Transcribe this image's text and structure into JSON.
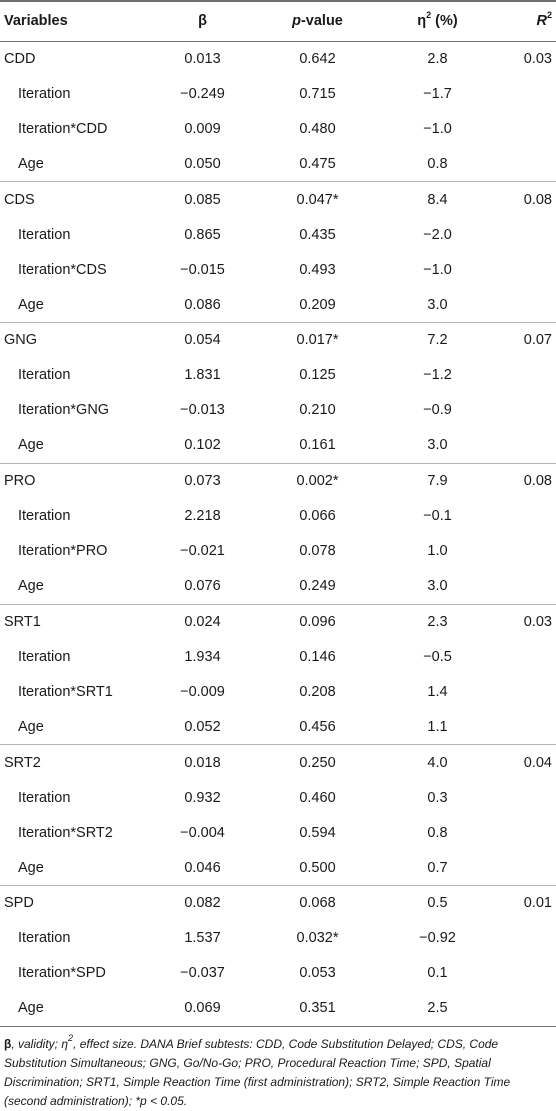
{
  "header": {
    "variables": "Variables",
    "beta": "β",
    "p_label": "p",
    "p_suffix": "-value",
    "eta": "η",
    "eta_sup": "2",
    "eta_suffix": " (%)",
    "r": "R",
    "r_sup": "2"
  },
  "rows": [
    {
      "var": "CDD",
      "beta": "0.013",
      "p": "0.642",
      "eta": "2.8",
      "r2": "0.03",
      "sub": false
    },
    {
      "var": "Iteration",
      "beta": "−0.249",
      "p": "0.715",
      "eta": "−1.7",
      "r2": "",
      "sub": true
    },
    {
      "var": "Iteration*CDD",
      "beta": "0.009",
      "p": "0.480",
      "eta": "−1.0",
      "r2": "",
      "sub": true
    },
    {
      "var": "Age",
      "beta": "0.050",
      "p": "0.475",
      "eta": "0.8",
      "r2": "",
      "sub": true
    },
    {
      "var": "CDS",
      "beta": "0.085",
      "p": "0.047*",
      "eta": "8.4",
      "r2": "0.08",
      "sub": false
    },
    {
      "var": "Iteration",
      "beta": "0.865",
      "p": "0.435",
      "eta": "−2.0",
      "r2": "",
      "sub": true
    },
    {
      "var": "Iteration*CDS",
      "beta": "−0.015",
      "p": "0.493",
      "eta": "−1.0",
      "r2": "",
      "sub": true
    },
    {
      "var": "Age",
      "beta": "0.086",
      "p": "0.209",
      "eta": "3.0",
      "r2": "",
      "sub": true
    },
    {
      "var": "GNG",
      "beta": "0.054",
      "p": "0.017*",
      "eta": "7.2",
      "r2": "0.07",
      "sub": false
    },
    {
      "var": "Iteration",
      "beta": "1.831",
      "p": "0.125",
      "eta": "−1.2",
      "r2": "",
      "sub": true
    },
    {
      "var": "Iteration*GNG",
      "beta": "−0.013",
      "p": "0.210",
      "eta": "−0.9",
      "r2": "",
      "sub": true
    },
    {
      "var": "Age",
      "beta": "0.102",
      "p": "0.161",
      "eta": "3.0",
      "r2": "",
      "sub": true
    },
    {
      "var": "PRO",
      "beta": "0.073",
      "p": "0.002*",
      "eta": "7.9",
      "r2": "0.08",
      "sub": false
    },
    {
      "var": "Iteration",
      "beta": "2.218",
      "p": "0.066",
      "eta": "−0.1",
      "r2": "",
      "sub": true
    },
    {
      "var": "Iteration*PRO",
      "beta": "−0.021",
      "p": "0.078",
      "eta": "1.0",
      "r2": "",
      "sub": true
    },
    {
      "var": "Age",
      "beta": "0.076",
      "p": "0.249",
      "eta": "3.0",
      "r2": "",
      "sub": true
    },
    {
      "var": "SRT1",
      "beta": "0.024",
      "p": "0.096",
      "eta": "2.3",
      "r2": "0.03",
      "sub": false
    },
    {
      "var": "Iteration",
      "beta": "1.934",
      "p": "0.146",
      "eta": "−0.5",
      "r2": "",
      "sub": true
    },
    {
      "var": "Iteration*SRT1",
      "beta": "−0.009",
      "p": "0.208",
      "eta": "1.4",
      "r2": "",
      "sub": true
    },
    {
      "var": "Age",
      "beta": "0.052",
      "p": "0.456",
      "eta": "1.1",
      "r2": "",
      "sub": true
    },
    {
      "var": "SRT2",
      "beta": "0.018",
      "p": "0.250",
      "eta": "4.0",
      "r2": "0.04",
      "sub": false
    },
    {
      "var": "Iteration",
      "beta": "0.932",
      "p": "0.460",
      "eta": "0.3",
      "r2": "",
      "sub": true
    },
    {
      "var": "Iteration*SRT2",
      "beta": "−0.004",
      "p": "0.594",
      "eta": "0.8",
      "r2": "",
      "sub": true
    },
    {
      "var": "Age",
      "beta": "0.046",
      "p": "0.500",
      "eta": "0.7",
      "r2": "",
      "sub": true
    },
    {
      "var": "SPD",
      "beta": "0.082",
      "p": "0.068",
      "eta": "0.5",
      "r2": "0.01",
      "sub": false
    },
    {
      "var": "Iteration",
      "beta": "1.537",
      "p": "0.032*",
      "eta": "−0.92",
      "r2": "",
      "sub": true
    },
    {
      "var": "Iteration*SPD",
      "beta": "−0.037",
      "p": "0.053",
      "eta": "0.1",
      "r2": "",
      "sub": true
    },
    {
      "var": "Age",
      "beta": "0.069",
      "p": "0.351",
      "eta": "2.5",
      "r2": "",
      "sub": true
    }
  ],
  "note": {
    "beta": "β",
    "t1": ", validity; ",
    "eta": "η",
    "eta_sup": "2",
    "t2": ", effect size. DANA Brief subtests: CDD, Code Substitution Delayed; CDS, Code Substitution Simultaneous; GNG, Go/No-Go; PRO, Procedural Reaction Time; SPD, Spatial Discrimination; SRT1, Simple Reaction Time (first administration); SRT2, Simple Reaction Time (second administration); *p < 0.05."
  }
}
